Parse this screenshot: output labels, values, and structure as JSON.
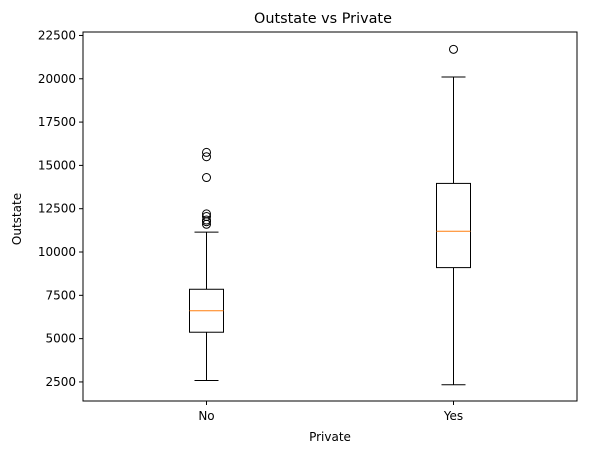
{
  "chart_data": {
    "type": "boxplot",
    "title": "Outstate vs Private",
    "xlabel": "Private",
    "ylabel": "Outstate",
    "categories": [
      "No",
      "Yes"
    ],
    "ylim": [
      1400,
      22700
    ],
    "yticks": [
      2500,
      5000,
      7500,
      10000,
      12500,
      15000,
      17500,
      20000,
      22500
    ],
    "boxes": [
      {
        "category": "No",
        "whisker_low": 2580,
        "q1": 5370,
        "median": 6610,
        "q3": 7850,
        "whisker_high": 11150,
        "outliers": [
          11600,
          11750,
          11850,
          12050,
          12200,
          14300,
          15500,
          15750
        ]
      },
      {
        "category": "Yes",
        "whisker_low": 2340,
        "q1": 9100,
        "median": 11200,
        "q3": 13960,
        "whisker_high": 20100,
        "outliers": [
          21700
        ]
      }
    ],
    "colors": {
      "box": "#000000",
      "median": "#ff7f0e",
      "outlier": "#000000"
    },
    "grid": false,
    "legend": "none"
  }
}
